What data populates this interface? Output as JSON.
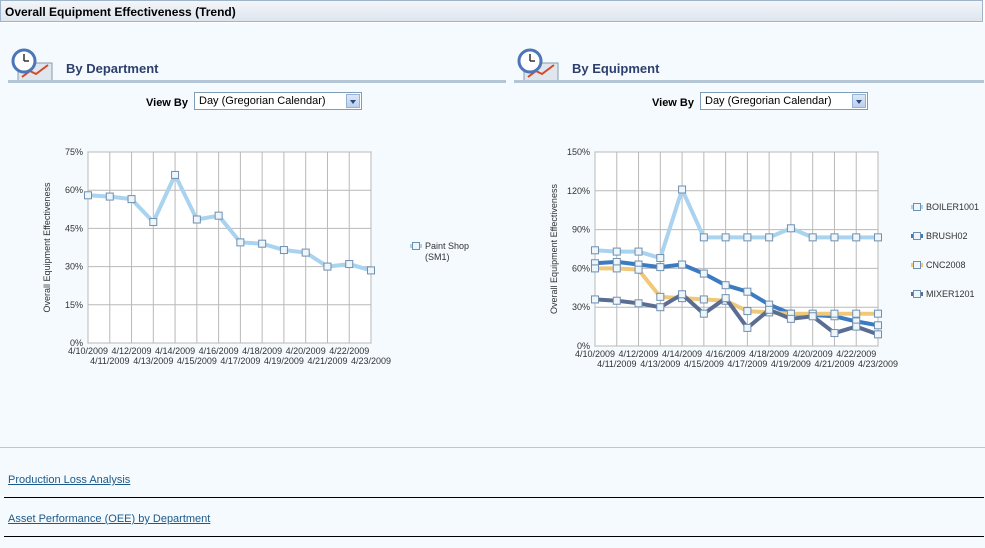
{
  "title": "Overall Equipment Effectiveness (Trend)",
  "department": {
    "heading": "By Department",
    "viewby_label": "View By",
    "viewby_value": "Day (Gregorian Calendar)"
  },
  "equipment": {
    "heading": "By Equipment",
    "viewby_label": "View By",
    "viewby_value": "Day (Gregorian Calendar)"
  },
  "links": [
    "Production Loss Analysis",
    "Asset Performance (OEE) by Department"
  ],
  "colors": {
    "accent": "#2d3f6e",
    "link": "#1d5a8c"
  },
  "chart_data": [
    {
      "type": "line",
      "ylabel": "Overall Equipment Effectiveness",
      "ylim": [
        0,
        75
      ],
      "yticks": [
        "0%",
        "15%",
        "30%",
        "45%",
        "60%",
        "75%"
      ],
      "categories": [
        "4/10/2009",
        "4/11/2009",
        "4/12/2009",
        "4/13/2009",
        "4/14/2009",
        "4/15/2009",
        "4/16/2009",
        "4/17/2009",
        "4/18/2009",
        "4/19/2009",
        "4/20/2009",
        "4/21/2009",
        "4/22/2009",
        "4/23/2009"
      ],
      "legend": "right",
      "series": [
        {
          "name": "Paint Shop (SM1)",
          "color": "#a9d3ef",
          "values": [
            58,
            57.5,
            56.5,
            47.5,
            66,
            48.5,
            50,
            39.5,
            39,
            36.5,
            35.5,
            30,
            31,
            28.5
          ]
        }
      ]
    },
    {
      "type": "line",
      "ylabel": "Overall Equipment Effectiveness",
      "ylim": [
        0,
        150
      ],
      "yticks": [
        "0%",
        "30%",
        "60%",
        "90%",
        "120%",
        "150%"
      ],
      "categories": [
        "4/10/2009",
        "4/11/2009",
        "4/12/2009",
        "4/13/2009",
        "4/14/2009",
        "4/15/2009",
        "4/16/2009",
        "4/17/2009",
        "4/18/2009",
        "4/19/2009",
        "4/20/2009",
        "4/21/2009",
        "4/22/2009",
        "4/23/2009"
      ],
      "legend": "right",
      "series": [
        {
          "name": "BOILER1001",
          "color": "#a9d3ef",
          "values": [
            74,
            73,
            73,
            68,
            121,
            84,
            84,
            84,
            84,
            91,
            84,
            84,
            84,
            84
          ]
        },
        {
          "name": "BRUSH02",
          "color": "#3a7bc2",
          "values": [
            64,
            65,
            63,
            61,
            63,
            56,
            47,
            42,
            32,
            25,
            24,
            23,
            19,
            16
          ]
        },
        {
          "name": "CNC2008",
          "color": "#f0c87a",
          "values": [
            60,
            60,
            59,
            38,
            37,
            36,
            35,
            27,
            26,
            25,
            25,
            25,
            25,
            25
          ]
        },
        {
          "name": "MIXER1201",
          "color": "#5a6d92",
          "values": [
            36,
            35,
            33,
            30,
            40,
            25,
            37,
            14,
            28,
            21,
            23,
            10,
            15,
            9
          ]
        }
      ]
    }
  ]
}
